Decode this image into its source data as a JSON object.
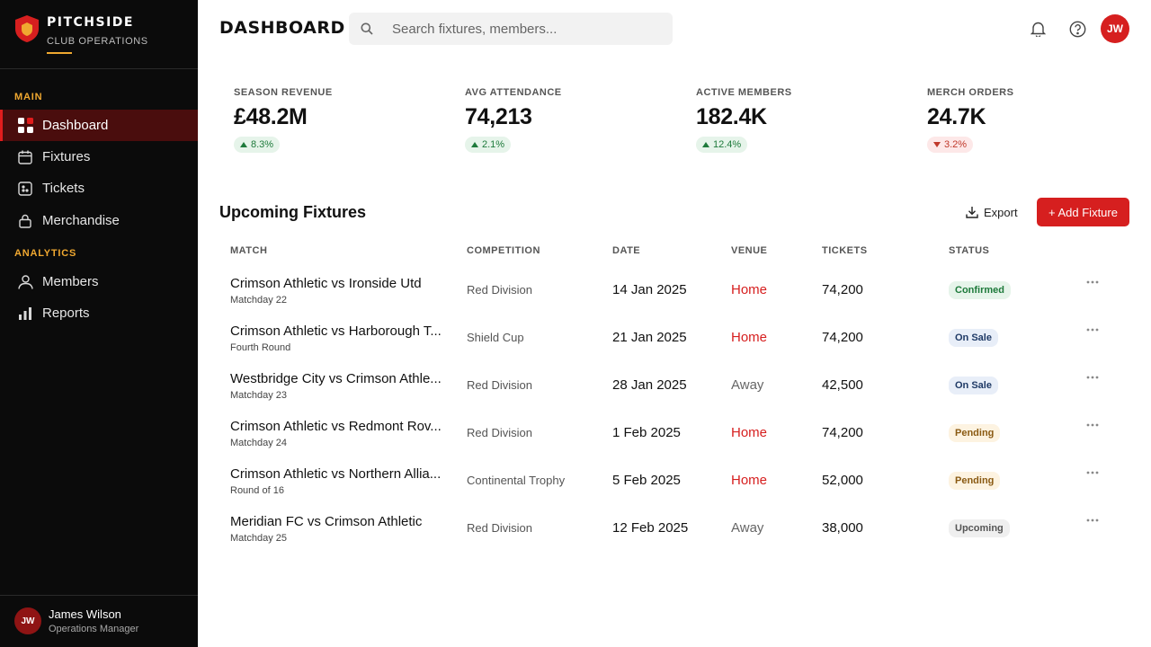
{
  "brand": {
    "name": "PITCHSIDE",
    "subtitle": "CLUB OPERATIONS"
  },
  "sidebar": {
    "sections": [
      {
        "label": "MAIN"
      },
      {
        "label": "ANALYTICS"
      }
    ],
    "items": [
      {
        "label": "Dashboard",
        "icon": "grid-icon",
        "active": true
      },
      {
        "label": "Fixtures",
        "icon": "calendar-icon"
      },
      {
        "label": "Tickets",
        "icon": "ticket-icon"
      },
      {
        "label": "Merchandise",
        "icon": "bag-icon"
      },
      {
        "label": "Members",
        "icon": "user-icon"
      },
      {
        "label": "Reports",
        "icon": "bar-chart-icon"
      }
    ]
  },
  "user": {
    "initials": "JW",
    "name": "James Wilson",
    "role": "Operations Manager"
  },
  "header": {
    "title": "DASHBOARD",
    "search_placeholder": "Search fixtures, members...",
    "avatar_initials": "JW"
  },
  "stats": [
    {
      "label": "SEASON REVENUE",
      "value": "£48.2M",
      "change": "8.3%",
      "trend": "up"
    },
    {
      "label": "AVG ATTENDANCE",
      "value": "74,213",
      "change": "2.1%",
      "trend": "up"
    },
    {
      "label": "ACTIVE MEMBERS",
      "value": "182.4K",
      "change": "12.4%",
      "trend": "up"
    },
    {
      "label": "MERCH ORDERS",
      "value": "24.7K",
      "change": "3.2%",
      "trend": "down"
    }
  ],
  "fixtures": {
    "title": "Upcoming Fixtures",
    "export_label": "Export",
    "add_label": "+ Add Fixture",
    "columns": [
      "MATCH",
      "COMPETITION",
      "DATE",
      "VENUE",
      "TICKETS",
      "STATUS"
    ],
    "rows": [
      {
        "match": "Crimson Athletic vs Ironside Utd",
        "round": "Matchday 22",
        "competition": "Red Division",
        "date": "14 Jan 2025",
        "venue": "Home",
        "tickets": "74,200",
        "status": "Confirmed"
      },
      {
        "match": "Crimson Athletic vs Harborough T...",
        "round": "Fourth Round",
        "competition": "Shield Cup",
        "date": "21 Jan 2025",
        "venue": "Home",
        "tickets": "74,200",
        "status": "On Sale"
      },
      {
        "match": "Westbridge City vs Crimson Athle...",
        "round": "Matchday 23",
        "competition": "Red Division",
        "date": "28 Jan 2025",
        "venue": "Away",
        "tickets": "42,500",
        "status": "On Sale"
      },
      {
        "match": "Crimson Athletic vs Redmont Rov...",
        "round": "Matchday 24",
        "competition": "Red Division",
        "date": "1 Feb 2025",
        "venue": "Home",
        "tickets": "74,200",
        "status": "Pending"
      },
      {
        "match": "Crimson Athletic vs Northern Allia...",
        "round": "Round of 16",
        "competition": "Continental Trophy",
        "date": "5 Feb 2025",
        "venue": "Home",
        "tickets": "52,000",
        "status": "Pending"
      },
      {
        "match": "Meridian FC vs Crimson Athletic",
        "round": "Matchday 25",
        "competition": "Red Division",
        "date": "12 Feb 2025",
        "venue": "Away",
        "tickets": "38,000",
        "status": "Upcoming"
      }
    ]
  },
  "colors": {
    "accent": "#d61f1f",
    "gold": "#f0a830",
    "sidebar_bg": "#0b0b0b",
    "active_bg": "#4a0d0d"
  }
}
